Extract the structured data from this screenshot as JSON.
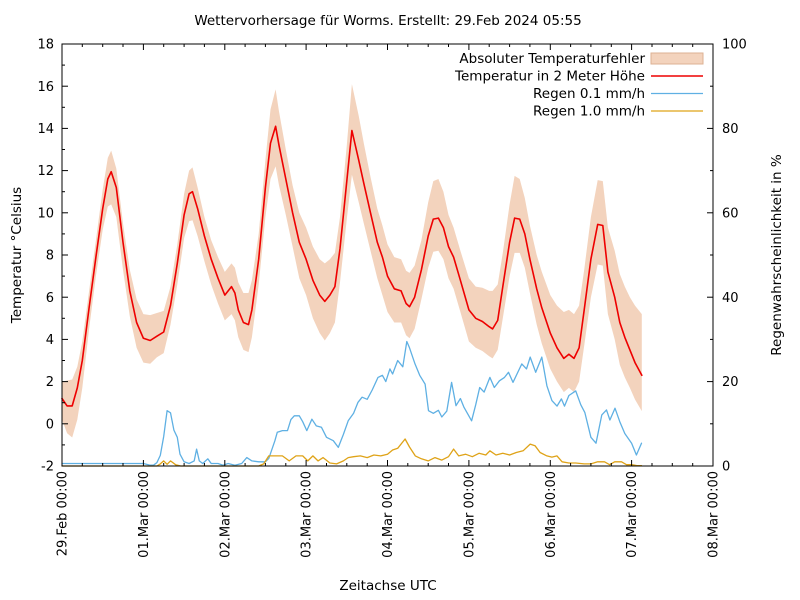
{
  "title": "Wettervorhersage für Worms. Erstellt: 29.Feb 2024 05:55",
  "colors": {
    "band_fill": "#f3d3bd",
    "band_edge": "#dcb193",
    "temperature": "#ee0000",
    "rain_01": "#5fb0e3",
    "rain_10": "#dfa318",
    "frame": "#000000"
  },
  "chart_data": {
    "type": "line",
    "title": "Wettervorhersage für Worms. Erstellt: 29.Feb 2024 05:55",
    "xlabel": "Zeitachse UTC",
    "ylabel_left": "Temperatur °Celsius",
    "ylabel_right": "Regenwahrscheinlichkeit in %",
    "x_unit": "hours since 29.Feb 2024 00:00 UTC",
    "xlim_hours": [
      0,
      192
    ],
    "ylim_left": [
      -2,
      18
    ],
    "ylim_right": [
      0,
      100
    ],
    "grid": false,
    "legend_position": "top-right-inside",
    "x_ticks": [
      {
        "t": 0,
        "label": "29.Feb 00:00"
      },
      {
        "t": 24,
        "label": "01.Mar 00:00"
      },
      {
        "t": 48,
        "label": "02.Mar 00:00"
      },
      {
        "t": 72,
        "label": "03.Mar 00:00"
      },
      {
        "t": 96,
        "label": "04.Mar 00:00"
      },
      {
        "t": 120,
        "label": "05.Mar 00:00"
      },
      {
        "t": 144,
        "label": "06.Mar 00:00"
      },
      {
        "t": 168,
        "label": "07.Mar 00:00"
      },
      {
        "t": 192,
        "label": "08.Mar 00:00"
      }
    ],
    "x_minor_step_hours": 6,
    "y_left_ticks": [
      -2,
      0,
      2,
      4,
      6,
      8,
      10,
      12,
      14,
      16,
      18
    ],
    "y_left_minor_step": 1,
    "y_right_ticks": [
      0,
      20,
      40,
      60,
      80,
      100
    ],
    "y_right_minor_step": 10,
    "legend": [
      {
        "label": "Absoluter Temperaturfehler",
        "type": "band",
        "color": "#f3d3bd"
      },
      {
        "label": "Temperatur in 2 Meter Höhe",
        "type": "line",
        "color": "#ee0000"
      },
      {
        "label": "Regen 0.1 mm/h",
        "type": "line",
        "color": "#5fb0e3"
      },
      {
        "label": "Regen 1.0 mm/h",
        "type": "line",
        "color": "#dfa318"
      }
    ],
    "series": {
      "temperature": {
        "name": "Temperatur in 2 Meter Höhe",
        "axis": "left",
        "x": [
          0,
          1.5,
          3,
          4.5,
          6,
          8,
          10,
          12,
          13.5,
          14.5,
          16,
          18,
          20,
          22,
          24,
          26,
          28,
          30,
          32,
          34,
          36,
          37.5,
          38.5,
          40,
          42,
          44,
          46,
          48,
          50,
          51,
          52,
          53.5,
          55,
          56,
          58,
          60,
          61.5,
          63,
          64,
          66,
          68,
          70,
          72,
          74,
          76,
          77.5,
          79,
          80.5,
          82,
          84,
          85.5,
          87.5,
          89,
          91,
          93,
          94.5,
          96,
          98,
          100,
          101.5,
          102.5,
          104,
          106,
          108,
          109.5,
          111,
          112.5,
          114,
          115.5,
          117.5,
          120,
          122,
          124,
          126,
          127,
          128.5,
          130,
          132,
          133.5,
          135,
          136.5,
          138,
          140,
          141.5,
          144,
          146,
          148,
          149.5,
          151,
          152.5,
          154,
          156,
          158,
          159.5,
          161,
          163,
          164.5,
          166,
          167.5,
          169,
          171
        ],
        "y": [
          1.2,
          0.85,
          0.85,
          1.7,
          3.0,
          5.5,
          7.9,
          10.2,
          11.6,
          11.95,
          11.2,
          8.6,
          6.3,
          4.8,
          4.05,
          3.95,
          4.15,
          4.35,
          5.6,
          7.6,
          9.9,
          10.9,
          11.0,
          10.2,
          8.9,
          7.8,
          6.9,
          6.1,
          6.5,
          6.2,
          5.4,
          4.8,
          4.7,
          5.4,
          7.8,
          11.2,
          13.3,
          14.1,
          13.2,
          11.6,
          10.0,
          8.6,
          7.8,
          6.8,
          6.1,
          5.8,
          6.1,
          6.5,
          8.3,
          11.5,
          13.9,
          12.5,
          11.4,
          10.0,
          8.6,
          7.9,
          7.0,
          6.4,
          6.3,
          5.7,
          5.55,
          6.0,
          7.3,
          8.9,
          9.7,
          9.75,
          9.3,
          8.4,
          7.9,
          6.8,
          5.4,
          5.0,
          4.85,
          4.6,
          4.5,
          4.9,
          6.5,
          8.6,
          9.75,
          9.7,
          9.0,
          7.8,
          6.4,
          5.5,
          4.3,
          3.6,
          3.1,
          3.3,
          3.1,
          3.6,
          5.4,
          7.8,
          9.45,
          9.4,
          7.2,
          6.0,
          4.8,
          4.1,
          3.5,
          2.9,
          2.3
        ]
      },
      "temp_error_band": {
        "name": "Absoluter Temperaturfehler",
        "axis": "left",
        "x": [
          0,
          1.5,
          3,
          4.5,
          6,
          8,
          10,
          12,
          13.5,
          14.5,
          16,
          18,
          20,
          22,
          24,
          26,
          28,
          30,
          32,
          34,
          36,
          37.5,
          38.5,
          40,
          42,
          44,
          46,
          48,
          50,
          51,
          52,
          53.5,
          55,
          56,
          58,
          60,
          61.5,
          63,
          64,
          66,
          68,
          70,
          72,
          74,
          76,
          77.5,
          79,
          80.5,
          82,
          84,
          85.5,
          87.5,
          89,
          91,
          93,
          94.5,
          96,
          98,
          100,
          101.5,
          102.5,
          104,
          106,
          108,
          109.5,
          111,
          112.5,
          114,
          115.5,
          117.5,
          120,
          122,
          124,
          126,
          127,
          128.5,
          130,
          132,
          133.5,
          135,
          136.5,
          138,
          140,
          141.5,
          144,
          146,
          148,
          149.5,
          151,
          152.5,
          154,
          156,
          158,
          159.5,
          161,
          163,
          164.5,
          166,
          167.5,
          169,
          171
        ],
        "upper": [
          2.0,
          2.05,
          2.1,
          2.7,
          3.9,
          6.3,
          8.7,
          11.1,
          12.6,
          12.95,
          12.1,
          9.5,
          7.3,
          5.9,
          5.2,
          5.15,
          5.25,
          5.35,
          6.5,
          8.5,
          10.9,
          12.0,
          12.15,
          11.2,
          9.8,
          8.7,
          7.9,
          7.2,
          7.6,
          7.4,
          6.7,
          6.2,
          6.2,
          6.8,
          9.0,
          12.5,
          14.9,
          15.85,
          14.8,
          13.0,
          11.3,
          10.0,
          9.3,
          8.4,
          7.8,
          7.6,
          7.8,
          8.1,
          9.8,
          13.2,
          16.1,
          14.6,
          13.3,
          11.7,
          10.2,
          9.4,
          8.5,
          7.9,
          7.8,
          7.25,
          7.15,
          7.5,
          8.7,
          10.5,
          11.5,
          11.6,
          11.0,
          9.9,
          9.3,
          8.2,
          6.9,
          6.5,
          6.45,
          6.3,
          6.3,
          6.6,
          8.1,
          10.4,
          11.75,
          11.6,
          10.7,
          9.4,
          8.0,
          7.2,
          6.1,
          5.6,
          5.3,
          5.4,
          5.2,
          5.6,
          7.3,
          9.8,
          11.55,
          11.5,
          9.3,
          8.2,
          7.1,
          6.5,
          6.0,
          5.6,
          5.2
        ],
        "lower": [
          0.2,
          -0.45,
          -0.65,
          0.2,
          1.7,
          4.5,
          7.0,
          9.2,
          10.3,
          10.4,
          9.8,
          7.3,
          5.1,
          3.6,
          2.9,
          2.85,
          3.15,
          3.35,
          4.7,
          6.6,
          8.8,
          9.6,
          9.65,
          8.9,
          7.7,
          6.6,
          5.7,
          4.9,
          5.2,
          4.9,
          4.1,
          3.5,
          3.4,
          4.1,
          6.6,
          9.8,
          11.6,
          12.2,
          11.3,
          9.9,
          8.4,
          6.9,
          6.1,
          5.0,
          4.3,
          3.95,
          4.3,
          4.8,
          6.7,
          9.7,
          11.8,
          10.5,
          9.5,
          8.2,
          6.9,
          6.1,
          5.3,
          4.8,
          4.8,
          4.2,
          4.05,
          4.5,
          5.9,
          7.4,
          8.15,
          8.2,
          7.8,
          6.9,
          6.4,
          5.3,
          3.9,
          3.6,
          3.45,
          3.2,
          3.1,
          3.5,
          5.0,
          7.0,
          8.1,
          8.1,
          7.4,
          6.2,
          4.7,
          3.8,
          2.6,
          2.0,
          1.5,
          1.7,
          1.5,
          2.0,
          3.7,
          6.0,
          7.55,
          7.5,
          5.2,
          4.0,
          2.8,
          2.2,
          1.7,
          1.15,
          0.6
        ]
      },
      "rain_01": {
        "name": "Regen 0.1 mm/h",
        "axis": "right",
        "x": [
          0,
          4,
          8,
          12,
          16,
          20,
          24,
          26,
          27,
          28,
          29,
          30,
          31,
          32,
          33,
          34,
          34.8,
          36,
          37.5,
          39,
          39.7,
          40.5,
          41.5,
          43,
          44,
          46,
          47.5,
          49,
          51,
          53,
          54.5,
          56,
          58,
          60,
          61,
          62.8,
          63.5,
          65,
          66.5,
          67.5,
          68.5,
          70,
          71,
          72.2,
          73.7,
          75,
          76.5,
          78,
          80,
          81.5,
          83,
          84.4,
          86,
          87.3,
          88.5,
          90,
          91.5,
          93.2,
          94.5,
          95.5,
          96.7,
          97.5,
          99,
          100.5,
          101.7,
          102.5,
          104.1,
          105.5,
          107.1,
          108.1,
          109.5,
          111,
          112,
          113.5,
          114.9,
          116.2,
          117.5,
          118.5,
          120.8,
          122,
          123.2,
          124.5,
          126.2,
          127.5,
          129,
          130.5,
          131.7,
          133,
          135.6,
          137,
          138.1,
          139.7,
          141.5,
          143,
          144.5,
          146,
          147.3,
          148.2,
          149.5,
          151.5,
          153,
          154.2,
          156,
          157.5,
          159.2,
          160.6,
          161.6,
          163.1,
          164.5,
          166,
          168,
          169.4,
          170.9
        ],
        "y": [
          0.6,
          0.6,
          0.6,
          0.6,
          0.6,
          0.6,
          0.6,
          0.2,
          0.2,
          0.8,
          2.5,
          7,
          13.1,
          12.6,
          8.5,
          6.8,
          2.8,
          1.0,
          0.6,
          1.2,
          4.0,
          1.2,
          0.6,
          1.7,
          0.6,
          0.6,
          0.2,
          0.6,
          0.2,
          0.6,
          2.0,
          1.2,
          1.0,
          1.0,
          1.8,
          6.0,
          8.0,
          8.4,
          8.4,
          11.0,
          11.9,
          11.9,
          10.5,
          8.4,
          11.1,
          9.5,
          9.2,
          6.8,
          6.0,
          4.4,
          7.5,
          10.7,
          12.5,
          15.1,
          16.3,
          15.8,
          18.0,
          21.0,
          21.5,
          20.0,
          23.0,
          21.8,
          25.0,
          23.5,
          29.5,
          28.0,
          24.2,
          21.5,
          19.4,
          13.1,
          12.5,
          13.2,
          11.6,
          13.0,
          19.8,
          14.3,
          16.0,
          14.0,
          10.7,
          14.5,
          18.6,
          17.5,
          21.0,
          18.6,
          20.2,
          21.0,
          22.2,
          19.8,
          24.2,
          23.0,
          25.8,
          22.2,
          25.8,
          19.0,
          15.5,
          14.2,
          15.9,
          14.2,
          16.7,
          17.8,
          14.5,
          12.7,
          6.8,
          5.4,
          12.1,
          13.3,
          10.9,
          13.7,
          10.5,
          7.7,
          5.4,
          2.6,
          5.4
        ]
      },
      "rain_10": {
        "name": "Regen 1.0 mm/h",
        "axis": "right",
        "x": [
          0,
          6,
          12,
          18,
          24,
          28,
          29,
          30,
          31,
          32,
          33.5,
          35,
          40,
          46,
          52,
          58,
          59.5,
          61,
          63,
          65,
          67,
          69,
          71,
          72.5,
          74,
          75.5,
          77,
          79,
          81,
          83,
          84.4,
          86,
          88,
          90,
          92,
          94,
          96,
          97.5,
          99,
          101.2,
          102.5,
          104.2,
          106,
          108,
          110,
          112,
          114,
          115.5,
          117,
          119,
          121,
          123,
          125,
          126.2,
          128,
          130,
          132,
          134,
          136,
          138.1,
          139.5,
          141,
          143,
          144.5,
          146,
          147.5,
          149.5,
          151.5,
          154,
          156,
          158,
          160,
          161.5,
          163,
          165,
          166.5,
          168,
          169.6,
          170.9
        ],
        "y": [
          0,
          0,
          0,
          0,
          0,
          0,
          0.5,
          1.2,
          0.4,
          1.2,
          0.3,
          0,
          0,
          0,
          0,
          0,
          0.5,
          2.4,
          2.4,
          2.4,
          1.2,
          2.4,
          2.4,
          1.2,
          2.4,
          1.2,
          2.0,
          0.7,
          0.5,
          1.2,
          2.0,
          2.2,
          2.4,
          2.0,
          2.6,
          2.4,
          2.8,
          3.8,
          4.2,
          6.4,
          4.5,
          2.4,
          1.7,
          1.2,
          2.0,
          1.4,
          2.2,
          4.0,
          2.4,
          2.8,
          2.2,
          3.0,
          2.6,
          3.6,
          2.6,
          3.0,
          2.6,
          3.2,
          3.6,
          5.2,
          4.8,
          3.2,
          2.4,
          2.1,
          2.4,
          1.0,
          0.7,
          0.7,
          0.5,
          0.5,
          1.0,
          1.0,
          0.3,
          1.0,
          1.0,
          0.3,
          0.3,
          0.1,
          0.1
        ]
      }
    }
  }
}
